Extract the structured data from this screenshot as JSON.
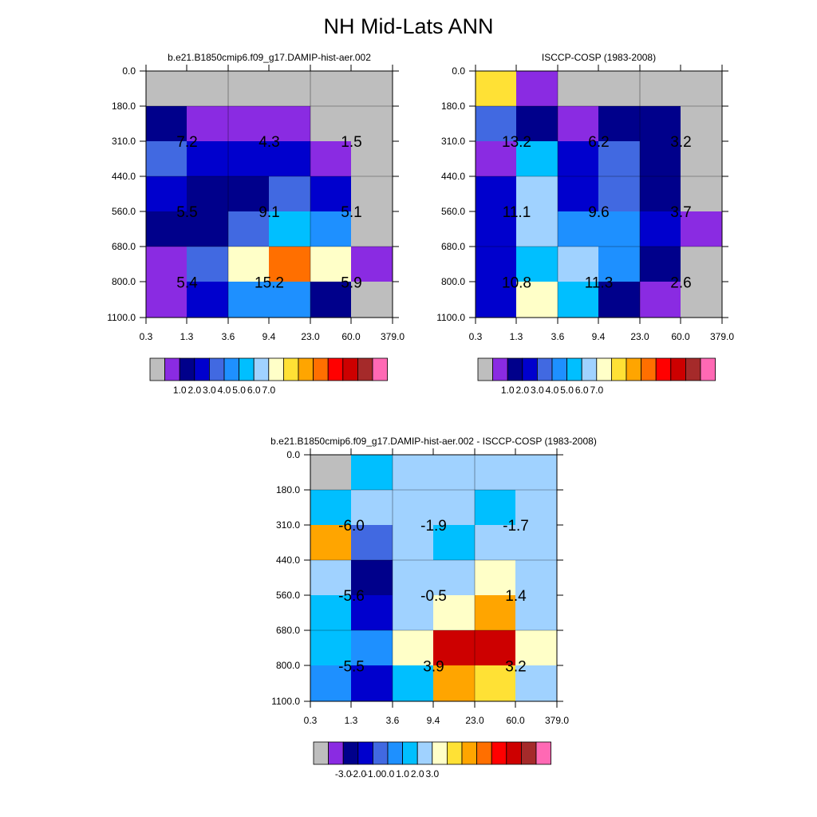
{
  "title": "NH Mid-Lats ANN",
  "palette": [
    "#bebebe",
    "#8a2be2",
    "#00008b",
    "#0000cd",
    "#4169e1",
    "#1e90ff",
    "#00bfff",
    "#a0d2ff",
    "#ffffc8",
    "#ffe135",
    "#ffa500",
    "#ff6f00",
    "#ff0000",
    "#cd0000",
    "#a52a2a",
    "#ff69b4"
  ],
  "chart_data": [
    {
      "type": "heatmap",
      "title": "b.e21.B1850cmip6.f09_g17.DAMIP-hist-aer.002",
      "x_tick_labels": [
        "0.3",
        "1.3",
        "3.6",
        "9.4",
        "23.0",
        "60.0",
        "379.0"
      ],
      "y_tick_labels": [
        "0.0",
        "180.0",
        "310.0",
        "440.0",
        "560.0",
        "680.0",
        "800.0",
        "1100.0"
      ],
      "cells": [
        [
          0,
          0,
          0,
          0,
          0,
          0
        ],
        [
          2,
          1,
          1,
          1,
          0,
          0
        ],
        [
          4,
          3,
          3,
          3,
          1,
          0
        ],
        [
          3,
          2,
          2,
          4,
          3,
          0
        ],
        [
          2,
          2,
          4,
          6,
          5,
          0
        ],
        [
          1,
          4,
          8,
          11,
          8,
          1
        ],
        [
          1,
          3,
          5,
          5,
          2,
          0
        ]
      ],
      "values": [
        {
          "text": "7.2",
          "x": "0.3–3.6",
          "y": "180.0–440.0"
        },
        {
          "text": "4.3",
          "x": "3.6–23.0",
          "y": "180.0–440.0"
        },
        {
          "text": "1.5",
          "x": "23.0–379.0",
          "y": "180.0–440.0"
        },
        {
          "text": "5.5",
          "x": "0.3–3.6",
          "y": "440.0–680.0"
        },
        {
          "text": "9.1",
          "x": "3.6–23.0",
          "y": "440.0–680.0"
        },
        {
          "text": "5.1",
          "x": "23.0–379.0",
          "y": "440.0–680.0"
        },
        {
          "text": "5.4",
          "x": "0.3–3.6",
          "y": "680.0–1100.0"
        },
        {
          "text": "15.2",
          "x": "3.6–23.0",
          "y": "680.0–1100.0"
        },
        {
          "text": "5.9",
          "x": "23.0–379.0",
          "y": "680.0–1100.0"
        }
      ],
      "colorbar_labels": [
        "1.0",
        "2.0",
        "3.0",
        "4.0",
        "5.0",
        "6.0",
        "7.0"
      ]
    },
    {
      "type": "heatmap",
      "title": "ISCCP-COSP (1983-2008)",
      "x_tick_labels": [
        "0.3",
        "1.3",
        "3.6",
        "9.4",
        "23.0",
        "60.0",
        "379.0"
      ],
      "y_tick_labels": [
        "0.0",
        "180.0",
        "310.0",
        "440.0",
        "560.0",
        "680.0",
        "800.0",
        "1100.0"
      ],
      "cells": [
        [
          9,
          1,
          0,
          0,
          0,
          0
        ],
        [
          4,
          2,
          1,
          2,
          2,
          0
        ],
        [
          1,
          6,
          3,
          4,
          2,
          0
        ],
        [
          3,
          7,
          3,
          4,
          2,
          0
        ],
        [
          3,
          7,
          5,
          5,
          3,
          1
        ],
        [
          3,
          6,
          7,
          5,
          2,
          0
        ],
        [
          3,
          8,
          6,
          2,
          1,
          0
        ]
      ],
      "values": [
        {
          "text": "13.2",
          "x": "0.3–3.6",
          "y": "180.0–440.0"
        },
        {
          "text": "6.2",
          "x": "3.6–23.0",
          "y": "180.0–440.0"
        },
        {
          "text": "3.2",
          "x": "23.0–379.0",
          "y": "180.0–440.0"
        },
        {
          "text": "11.1",
          "x": "0.3–3.6",
          "y": "440.0–680.0"
        },
        {
          "text": "9.6",
          "x": "3.6–23.0",
          "y": "440.0–680.0"
        },
        {
          "text": "3.7",
          "x": "23.0–379.0",
          "y": "440.0–680.0"
        },
        {
          "text": "10.8",
          "x": "0.3–3.6",
          "y": "680.0–1100.0"
        },
        {
          "text": "11.3",
          "x": "3.6–23.0",
          "y": "680.0–1100.0"
        },
        {
          "text": "2.6",
          "x": "23.0–379.0",
          "y": "680.0–1100.0"
        }
      ],
      "colorbar_labels": [
        "1.0",
        "2.0",
        "3.0",
        "4.0",
        "5.0",
        "6.0",
        "7.0"
      ]
    },
    {
      "type": "heatmap",
      "title": "b.e21.B1850cmip6.f09_g17.DAMIP-hist-aer.002 - ISCCP-COSP (1983-2008)",
      "x_tick_labels": [
        "0.3",
        "1.3",
        "3.6",
        "9.4",
        "23.0",
        "60.0",
        "379.0"
      ],
      "y_tick_labels": [
        "0.0",
        "180.0",
        "310.0",
        "440.0",
        "560.0",
        "680.0",
        "800.0",
        "1100.0"
      ],
      "cells": [
        [
          0,
          6,
          7,
          7,
          7,
          7
        ],
        [
          6,
          7,
          7,
          7,
          6,
          7
        ],
        [
          10,
          4,
          7,
          6,
          7,
          7
        ],
        [
          7,
          2,
          7,
          7,
          8,
          7
        ],
        [
          6,
          3,
          7,
          8,
          10,
          7
        ],
        [
          6,
          5,
          8,
          13,
          13,
          8
        ],
        [
          5,
          3,
          6,
          10,
          9,
          7
        ]
      ],
      "values": [
        {
          "text": "-6.0",
          "x": "0.3–3.6",
          "y": "180.0–440.0"
        },
        {
          "text": "-1.9",
          "x": "3.6–23.0",
          "y": "180.0–440.0"
        },
        {
          "text": "-1.7",
          "x": "23.0–379.0",
          "y": "180.0–440.0"
        },
        {
          "text": "-5.6",
          "x": "0.3–3.6",
          "y": "440.0–680.0"
        },
        {
          "text": "-0.5",
          "x": "3.6–23.0",
          "y": "440.0–680.0"
        },
        {
          "text": "1.4",
          "x": "23.0–379.0",
          "y": "440.0–680.0"
        },
        {
          "text": "-5.5",
          "x": "0.3–3.6",
          "y": "680.0–1100.0"
        },
        {
          "text": "3.9",
          "x": "3.6–23.0",
          "y": "680.0–1100.0"
        },
        {
          "text": "3.2",
          "x": "23.0–379.0",
          "y": "680.0–1100.0"
        }
      ],
      "colorbar_labels": [
        "-3.0",
        "-2.0",
        "-1.0",
        "0.0",
        "1.0",
        "2.0",
        "3.0"
      ]
    }
  ]
}
